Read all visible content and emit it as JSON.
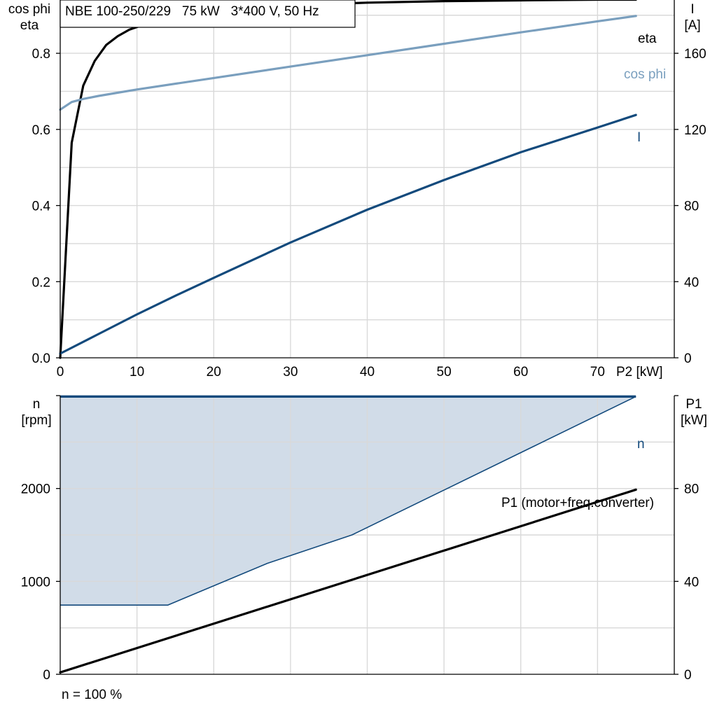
{
  "title_box": "NBE 100-250/229   75 kW   3*400 V, 50 Hz",
  "footnote": "n = 100 %",
  "colors": {
    "eta": "#000000",
    "cos_phi": "#7a9fbe",
    "current": "#134a7c",
    "speed": "#134a7c",
    "speed_fill": "#d1dce8",
    "p1": "#000000",
    "grid": "#d9d9d9"
  },
  "chart_data": [
    {
      "type": "line",
      "xlabel": "P2 [kW]",
      "ylabel_left": [
        "cos phi",
        "eta"
      ],
      "ylabel_right": [
        "I",
        "[A]"
      ],
      "xlim": [
        0,
        80
      ],
      "ylim_left": [
        0,
        0.94
      ],
      "ylim_right": [
        0,
        188
      ],
      "x_ticks": [
        0,
        10,
        20,
        30,
        40,
        50,
        60,
        70
      ],
      "y_ticks_left": [
        "0.0",
        "0.2",
        "0.4",
        "0.6",
        "0.8"
      ],
      "y_ticks_right": [
        "0",
        "40",
        "80",
        "120",
        "160"
      ],
      "grid": true,
      "series": [
        {
          "name": "eta",
          "axis": "left",
          "x": [
            0,
            1.5,
            3,
            4.5,
            6,
            7.5,
            9,
            11,
            13,
            15,
            18,
            22,
            27,
            33,
            40,
            50,
            60,
            70,
            75
          ],
          "y": [
            0.0,
            0.565,
            0.715,
            0.78,
            0.822,
            0.845,
            0.862,
            0.876,
            0.887,
            0.896,
            0.906,
            0.915,
            0.922,
            0.928,
            0.933,
            0.937,
            0.939,
            0.941,
            0.941
          ]
        },
        {
          "name": "cos phi",
          "axis": "left",
          "x": [
            0,
            1.5,
            3,
            5,
            10,
            20,
            30,
            40,
            50,
            60,
            70,
            75
          ],
          "y": [
            0.652,
            0.672,
            0.68,
            0.688,
            0.705,
            0.735,
            0.765,
            0.795,
            0.825,
            0.855,
            0.884,
            0.898
          ]
        },
        {
          "name": "I",
          "axis": "right",
          "x": [
            0,
            5,
            10,
            15,
            20,
            30,
            40,
            50,
            60,
            70,
            75
          ],
          "y": [
            2.2,
            12.5,
            22.8,
            32.6,
            42,
            60.6,
            77.8,
            93.4,
            108,
            121,
            127.6
          ]
        }
      ]
    },
    {
      "type": "area",
      "ylabel_left": [
        "n",
        "[rpm]"
      ],
      "ylabel_right": [
        "P1",
        "[kW]"
      ],
      "xlim": [
        0,
        80
      ],
      "ylim_left": [
        0,
        3000
      ],
      "ylim_right": [
        0,
        120
      ],
      "y_ticks_left": [
        "0",
        "1000",
        "2000"
      ],
      "y_ticks_right": [
        "0",
        "40",
        "80"
      ],
      "grid": true,
      "series": [
        {
          "name": "n",
          "axis": "left",
          "upper": {
            "x": [
              0,
              75
            ],
            "y": [
              2990,
              2990
            ]
          },
          "lower": {
            "x": [
              0,
              14,
              27,
              38,
              75
            ],
            "y": [
              745,
              745,
              1195,
              1500,
              2990
            ]
          }
        },
        {
          "name": "P1 (motor+freq.converter)",
          "axis": "right",
          "x": [
            0,
            75
          ],
          "y": [
            0.8,
            79.5
          ]
        }
      ]
    }
  ]
}
